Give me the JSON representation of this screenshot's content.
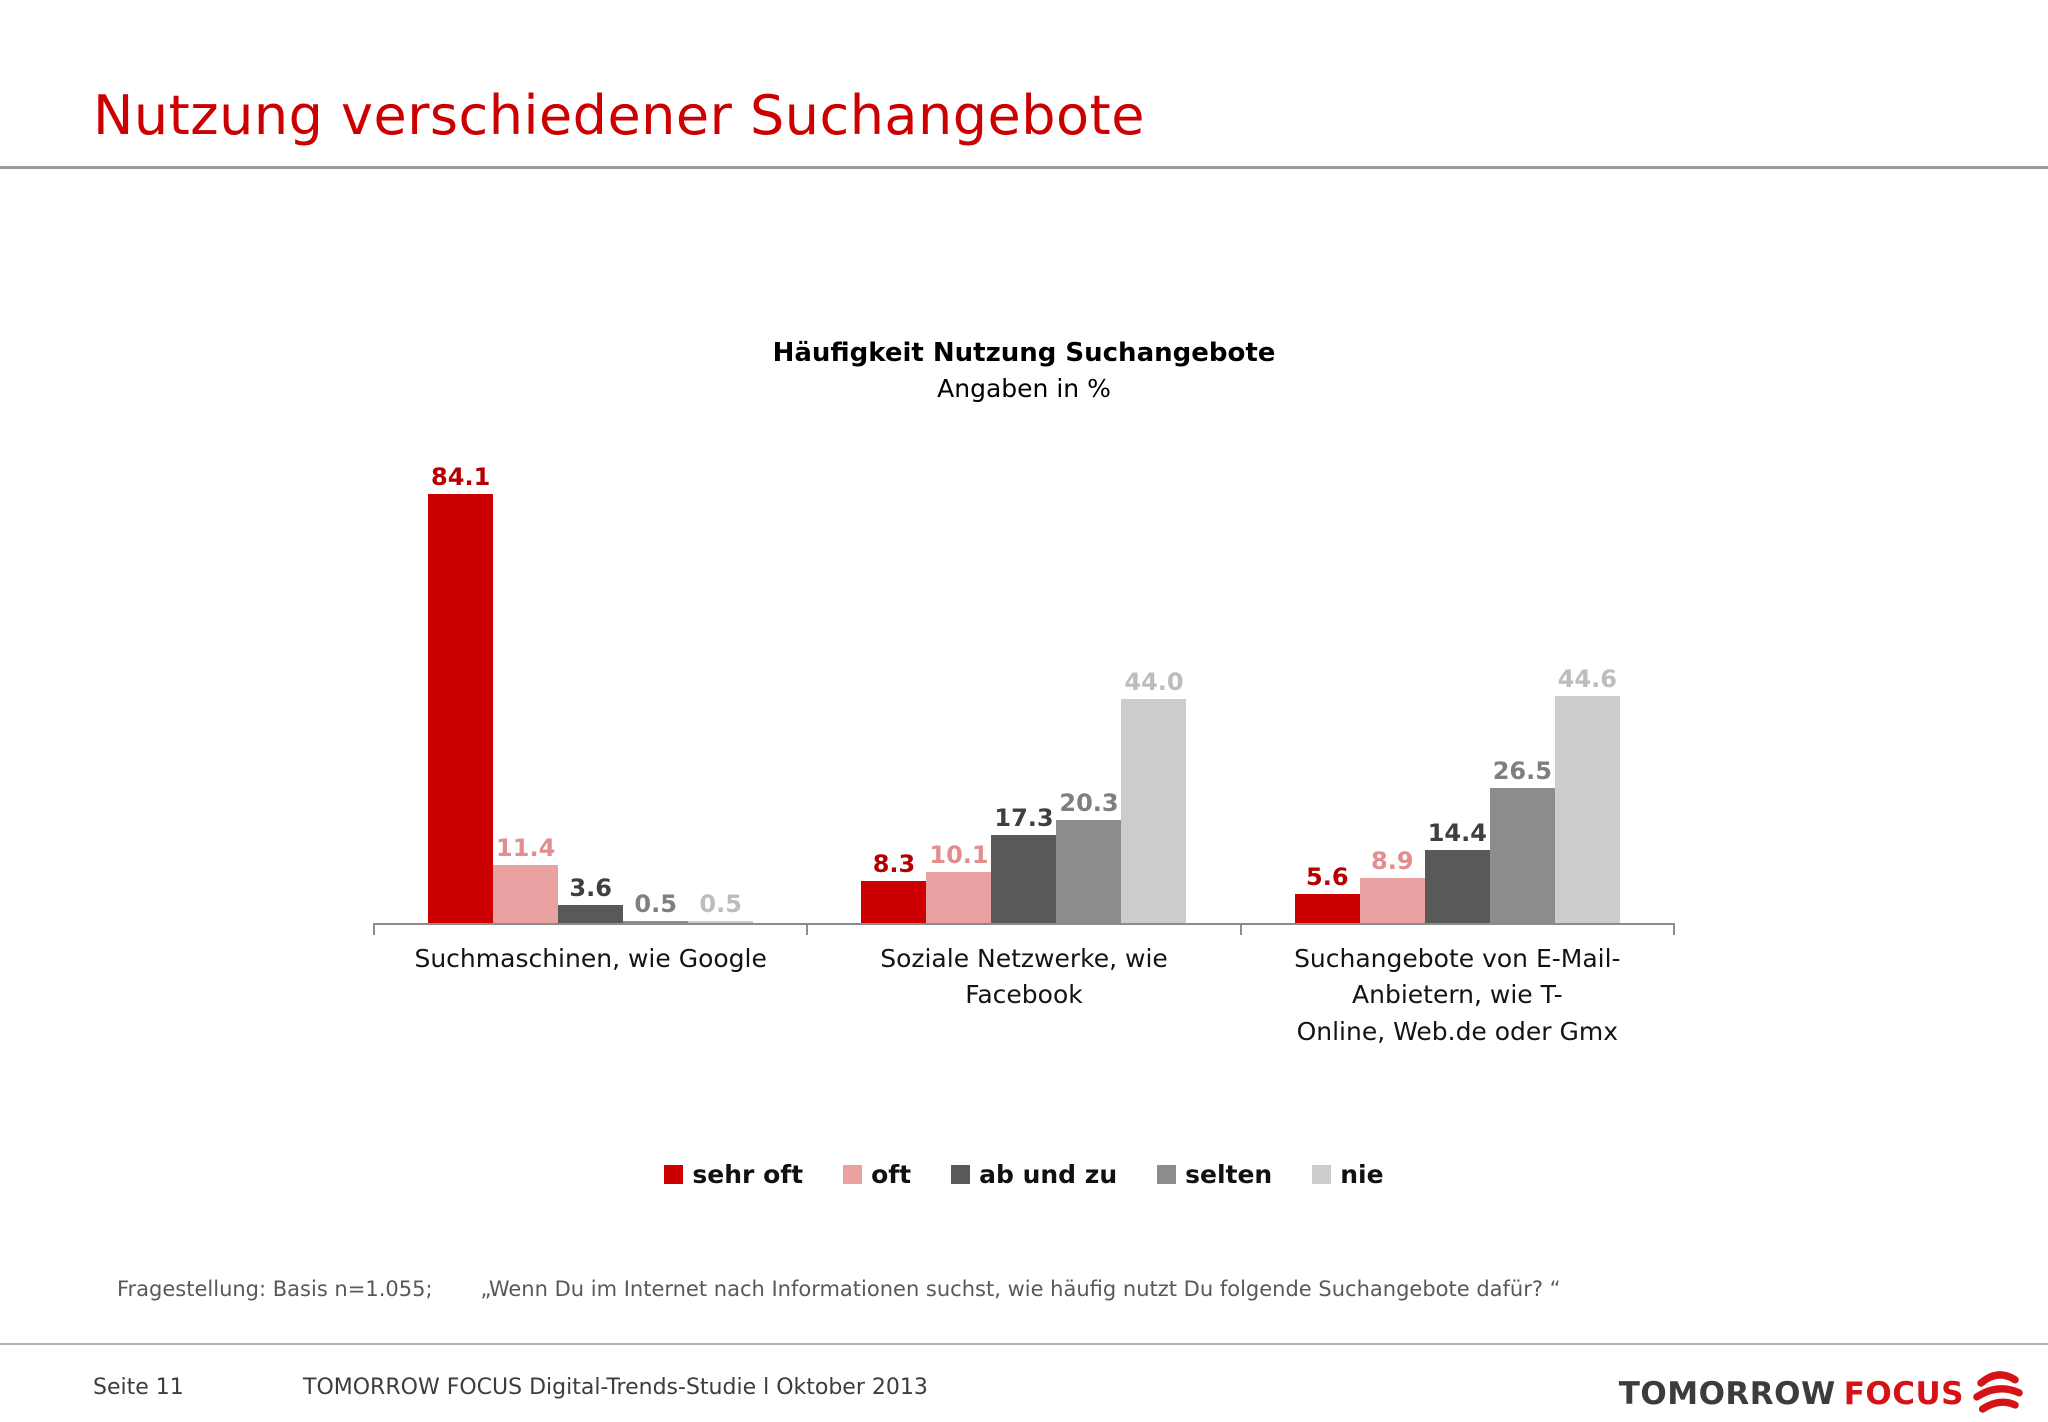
{
  "slide": {
    "title": "Nutzung verschiedener Suchangebote",
    "footnote_left": "Fragestellung: Basis n=1.055;",
    "footnote_quote": "„Wenn Du im Internet nach Informationen suchst, wie häufig nutzt Du folgende Suchangebote dafür? “",
    "footer": {
      "page": "Seite 11",
      "study": "TOMORROW FOCUS Digital-Trends-Studie l Oktober 2013",
      "logo_tomorrow": "TOMORROW",
      "logo_focus": "FOCUS"
    },
    "colors": {
      "title_red": "#CC0000",
      "logo_dark": "#3C3C3B",
      "logo_red": "#D51317"
    }
  },
  "chart_data": {
    "type": "bar",
    "title": "Häufigkeit Nutzung Suchangebote",
    "subtitle": "Angaben in %",
    "categories": [
      "Suchmaschinen, wie Google",
      "Soziale Netzwerke, wie\nFacebook",
      "Suchangebote von E-Mail-\nAnbietern, wie T-\nOnline, Web.de oder Gmx"
    ],
    "series": [
      {
        "name": "sehr oft",
        "color": "#CC0000",
        "label_color": "#B40000",
        "values": [
          84.1,
          8.3,
          5.6
        ]
      },
      {
        "name": "oft",
        "color": "#E9A2A2",
        "label_color": "#E28E8E",
        "values": [
          11.4,
          10.1,
          8.9
        ]
      },
      {
        "name": "ab und zu",
        "color": "#595959",
        "label_color": "#3F3F3F",
        "values": [
          3.6,
          17.3,
          14.4
        ]
      },
      {
        "name": "selten",
        "color": "#8C8C8C",
        "label_color": "#7F7F7F",
        "values": [
          0.5,
          20.3,
          26.5
        ]
      },
      {
        "name": "nie",
        "color": "#CCCCCC",
        "label_color": "#BDBDBD",
        "values": [
          0.5,
          44.0,
          44.6
        ]
      }
    ],
    "ylim": [
      0,
      90
    ],
    "grid": false,
    "legend_position": "bottom",
    "value_format": "one_decimal"
  }
}
